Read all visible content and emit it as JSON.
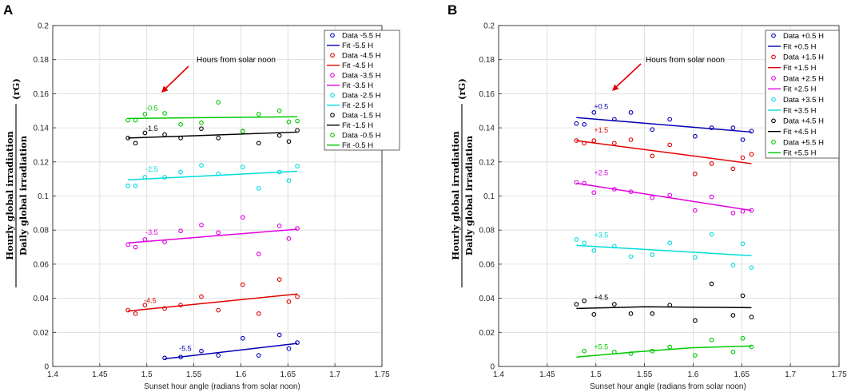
{
  "chart_data": [
    {
      "panel": "A",
      "type": "scatter",
      "title": "",
      "xlabel": "Sunset hour angle (radians from solar noon)",
      "ylabel_top": "Hourly global irradiation",
      "ylabel_bottom": "Daily global irradiation",
      "ylabel_symbol": "(rG)",
      "xlim": [
        1.4,
        1.75
      ],
      "ylim": [
        0,
        0.2
      ],
      "xticks": [
        "1.4",
        "1.45",
        "1.5",
        "1.55",
        "1.6",
        "1.65",
        "1.7",
        "1.75"
      ],
      "yticks": [
        "0",
        "0.02",
        "0.04",
        "0.06",
        "0.08",
        "0.1",
        "0.12",
        "0.14",
        "0.16",
        "0.18",
        "0.2"
      ],
      "grid": true,
      "annotation": "Hours from solar noon",
      "legend_position": "top-right",
      "series": [
        {
          "name": "-5.5 H",
          "label": "-5.5",
          "color": "#0000b4",
          "legend_data": "Data -5.5 H",
          "legend_fit": "Fit -5.5 H",
          "x": [
            1.519,
            1.536,
            1.558,
            1.576,
            1.602,
            1.619,
            1.641,
            1.651,
            1.66
          ],
          "y": [
            0.005,
            0.0055,
            0.009,
            0.0065,
            0.0165,
            0.0065,
            0.0185,
            0.0105,
            0.014
          ],
          "fit": [
            [
              1.519,
              0.0045
            ],
            [
              1.66,
              0.0135
            ]
          ]
        },
        {
          "name": "-4.5 H",
          "label": "-4.5",
          "color": "#e00000",
          "legend_data": "Data -4.5 H",
          "legend_fit": "Fit -4.5 H",
          "x": [
            1.48,
            1.488,
            1.498,
            1.519,
            1.536,
            1.558,
            1.576,
            1.602,
            1.619,
            1.641,
            1.651,
            1.66
          ],
          "y": [
            0.033,
            0.031,
            0.036,
            0.034,
            0.036,
            0.041,
            0.033,
            0.048,
            0.031,
            0.051,
            0.038,
            0.041
          ],
          "fit": [
            [
              1.48,
              0.0325
            ],
            [
              1.66,
              0.0425
            ]
          ]
        },
        {
          "name": "-3.5 H",
          "label": "-3.5",
          "color": "#e000e0",
          "legend_data": "Data -3.5 H",
          "legend_fit": "Fit -3.5 H",
          "x": [
            1.48,
            1.488,
            1.498,
            1.519,
            1.536,
            1.558,
            1.576,
            1.602,
            1.619,
            1.641,
            1.651,
            1.66
          ],
          "y": [
            0.0715,
            0.07,
            0.0745,
            0.073,
            0.0795,
            0.083,
            0.0785,
            0.0875,
            0.066,
            0.0825,
            0.075,
            0.081
          ],
          "fit": [
            [
              1.48,
              0.0725
            ],
            [
              1.66,
              0.0805
            ]
          ]
        },
        {
          "name": "-2.5 H",
          "label": "-2.5",
          "color": "#00dcdc",
          "legend_data": "Data -2.5 H",
          "legend_fit": "Fit -2.5 H",
          "x": [
            1.48,
            1.488,
            1.498,
            1.519,
            1.536,
            1.558,
            1.576,
            1.602,
            1.619,
            1.641,
            1.651,
            1.66
          ],
          "y": [
            0.106,
            0.106,
            0.111,
            0.111,
            0.114,
            0.118,
            0.113,
            0.117,
            0.1045,
            0.114,
            0.109,
            0.1175
          ],
          "fit": [
            [
              1.48,
              0.1095
            ],
            [
              1.66,
              0.1145
            ]
          ]
        },
        {
          "name": "-1.5 H",
          "label": "-1.5",
          "color": "#000000",
          "legend_data": "Data -1.5 H",
          "legend_fit": "Fit -1.5 H",
          "x": [
            1.48,
            1.488,
            1.498,
            1.519,
            1.536,
            1.558,
            1.576,
            1.602,
            1.619,
            1.641,
            1.651,
            1.66
          ],
          "y": [
            0.134,
            0.131,
            0.137,
            0.136,
            0.134,
            0.1395,
            0.134,
            0.138,
            0.131,
            0.1355,
            0.132,
            0.1385
          ],
          "fit": [
            [
              1.48,
              0.134
            ],
            [
              1.66,
              0.1375
            ]
          ]
        },
        {
          "name": "-0.5 H",
          "label": "-0.5",
          "color": "#00c800",
          "legend_data": "Data -0.5 H",
          "legend_fit": "Fit -0.5 H",
          "x": [
            1.48,
            1.488,
            1.498,
            1.519,
            1.536,
            1.558,
            1.576,
            1.602,
            1.619,
            1.641,
            1.651,
            1.66
          ],
          "y": [
            0.1445,
            0.1445,
            0.148,
            0.1485,
            0.142,
            0.143,
            0.155,
            0.138,
            0.148,
            0.15,
            0.1435,
            0.144
          ],
          "fit": [
            [
              1.48,
              0.1455
            ],
            [
              1.66,
              0.1465
            ]
          ]
        }
      ]
    },
    {
      "panel": "B",
      "type": "scatter",
      "title": "",
      "xlabel": "Sunset hour angle (radians from solar noon)",
      "ylabel_top": "Hourly global irradiation",
      "ylabel_bottom": "Daily global irradiation",
      "ylabel_symbol": "(rG)",
      "xlim": [
        1.4,
        1.75
      ],
      "ylim": [
        0,
        0.2
      ],
      "xticks": [
        "1.4",
        "1.45",
        "1.5",
        "1.55",
        "1.6",
        "1.65",
        "1.7",
        "1.75"
      ],
      "yticks": [
        "0",
        "0.02",
        "0.04",
        "0.06",
        "0.08",
        "0.1",
        "0.12",
        "0.14",
        "0.16",
        "0.18",
        "0.2"
      ],
      "grid": true,
      "annotation": "Hours from solar noon",
      "legend_position": "top-right",
      "series": [
        {
          "name": "+0.5 H",
          "label": "+0.5",
          "color": "#0000b4",
          "legend_data": "Data +0.5 H",
          "legend_fit": "Fit +0.5 H",
          "x": [
            1.48,
            1.488,
            1.498,
            1.519,
            1.536,
            1.558,
            1.576,
            1.602,
            1.619,
            1.641,
            1.651,
            1.66
          ],
          "y": [
            0.1425,
            0.142,
            0.149,
            0.145,
            0.149,
            0.139,
            0.145,
            0.135,
            0.14,
            0.14,
            0.133,
            0.138
          ],
          "fit": [
            [
              1.48,
              0.146
            ],
            [
              1.66,
              0.1375
            ]
          ]
        },
        {
          "name": "+1.5 H",
          "label": "+1.5",
          "color": "#e00000",
          "legend_data": "Data +1.5 H",
          "legend_fit": "Fit +1.5 H",
          "x": [
            1.48,
            1.488,
            1.498,
            1.519,
            1.536,
            1.558,
            1.576,
            1.602,
            1.619,
            1.641,
            1.651,
            1.66
          ],
          "y": [
            0.1325,
            0.131,
            0.1325,
            0.131,
            0.133,
            0.1235,
            0.13,
            0.113,
            0.119,
            0.116,
            0.1225,
            0.1245
          ],
          "fit": [
            [
              1.48,
              0.1325
            ],
            [
              1.66,
              0.119
            ]
          ]
        },
        {
          "name": "+2.5 H",
          "label": "+2.5",
          "color": "#e000e0",
          "legend_data": "Data +2.5 H",
          "legend_fit": "Fit +2.5 H",
          "x": [
            1.48,
            1.488,
            1.498,
            1.519,
            1.536,
            1.558,
            1.576,
            1.602,
            1.619,
            1.641,
            1.651,
            1.66
          ],
          "y": [
            0.108,
            0.1075,
            0.102,
            0.104,
            0.1025,
            0.099,
            0.1005,
            0.0915,
            0.0995,
            0.09,
            0.091,
            0.0915
          ],
          "fit": [
            [
              1.48,
              0.1075
            ],
            [
              1.66,
              0.0915
            ]
          ]
        },
        {
          "name": "+3.5 H",
          "label": "+3.5",
          "color": "#00dcdc",
          "legend_data": "Data +3.5 H",
          "legend_fit": "Fit +3.5 H",
          "x": [
            1.48,
            1.488,
            1.498,
            1.519,
            1.536,
            1.558,
            1.576,
            1.602,
            1.619,
            1.641,
            1.651,
            1.66
          ],
          "y": [
            0.0745,
            0.0725,
            0.068,
            0.0705,
            0.0645,
            0.0655,
            0.0725,
            0.064,
            0.0775,
            0.0595,
            0.072,
            0.058
          ],
          "fit": [
            [
              1.48,
              0.071
            ],
            [
              1.66,
              0.065
            ]
          ]
        },
        {
          "name": "+4.5 H",
          "label": "+4.5",
          "color": "#000000",
          "legend_data": "Data +4.5 H",
          "legend_fit": "Fit +4.5 H",
          "x": [
            1.48,
            1.488,
            1.498,
            1.519,
            1.536,
            1.558,
            1.576,
            1.602,
            1.619,
            1.641,
            1.651,
            1.66
          ],
          "y": [
            0.0365,
            0.0385,
            0.0305,
            0.0365,
            0.031,
            0.031,
            0.036,
            0.027,
            0.0485,
            0.03,
            0.0415,
            0.029
          ],
          "fit": [
            [
              1.48,
              0.034
            ],
            [
              1.55,
              0.035
            ],
            [
              1.66,
              0.0345
            ]
          ]
        },
        {
          "name": "+5.5 H",
          "label": "+5.5",
          "color": "#00c800",
          "legend_data": "Data +5.5 H",
          "legend_fit": "Fit +5.5 H",
          "x": [
            1.488,
            1.519,
            1.536,
            1.558,
            1.576,
            1.602,
            1.619,
            1.641,
            1.651,
            1.66
          ],
          "y": [
            0.009,
            0.0085,
            0.0075,
            0.009,
            0.0115,
            0.0065,
            0.0155,
            0.0085,
            0.0165,
            0.0115
          ],
          "fit": [
            [
              1.48,
              0.0055
            ],
            [
              1.54,
              0.0085
            ],
            [
              1.6,
              0.011
            ],
            [
              1.66,
              0.012
            ]
          ]
        }
      ]
    }
  ]
}
